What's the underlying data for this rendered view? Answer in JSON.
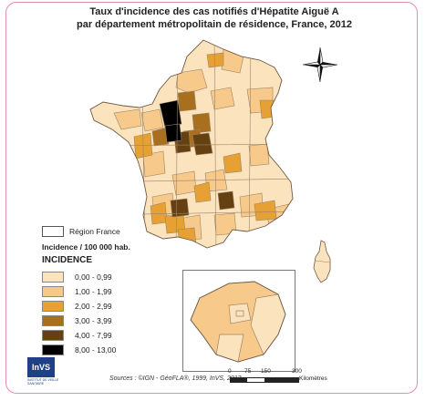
{
  "title": {
    "line1": "Taux d'incidence des cas notifiés d'Hépatite Aiguë A",
    "line2": "par département métropolitain de résidence, France, 2012"
  },
  "legend": {
    "region_label": "Région France",
    "unit_label": "Incidence / 100 000 hab.",
    "heading": "INCIDENCE",
    "classes": [
      {
        "label": "0,00 - 0,99",
        "color": "#fbe3bd"
      },
      {
        "label": "1,00 - 1,99",
        "color": "#f7c98a"
      },
      {
        "label": "2,00 - 2,99",
        "color": "#e6a033"
      },
      {
        "label": "3,00 - 3,99",
        "color": "#a8701e"
      },
      {
        "label": "4,00 - 7,99",
        "color": "#654011"
      },
      {
        "label": "8,00 - 13,00",
        "color": "#000000"
      }
    ]
  },
  "logo": {
    "text": "InVS",
    "subtitle": "INSTITUT DE VEILLE SANITAIRE"
  },
  "sources": "Sources : ©IGN - GéoFLA®, 1999, InVS, 2013",
  "scale": {
    "ticks": [
      "0",
      "75",
      "150",
      "300"
    ],
    "unit": "Kilomètres"
  },
  "compass_icon": "north-arrow-icon"
}
